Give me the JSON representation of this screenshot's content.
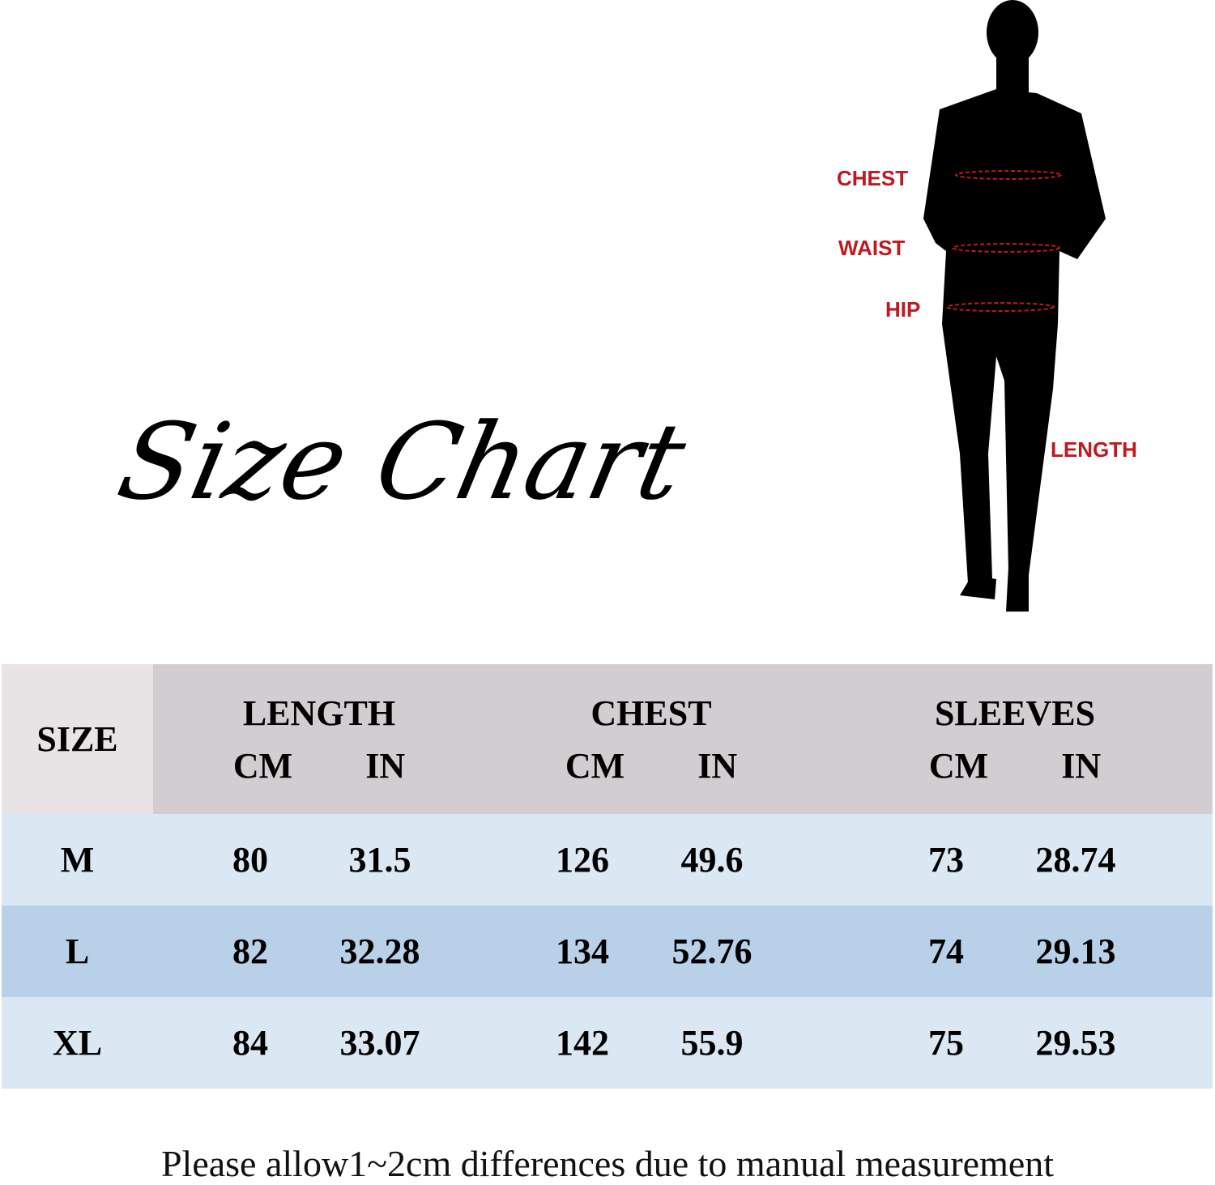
{
  "title": "Size Chart",
  "figure_labels": {
    "chest": "CHEST",
    "waist": "WAIST",
    "hip": "HIP",
    "length": "LENGTH"
  },
  "table": {
    "size_header": "SIZE",
    "groups": [
      {
        "label": "LENGTH",
        "cm": "CM",
        "in": "IN"
      },
      {
        "label": "CHEST",
        "cm": "CM",
        "in": "IN"
      },
      {
        "label": "SLEEVES",
        "cm": "CM",
        "in": "IN"
      }
    ],
    "rows": [
      {
        "size": "M",
        "length_cm": "80",
        "length_in": "31.5",
        "chest_cm": "126",
        "chest_in": "49.6",
        "sleeves_cm": "73",
        "sleeves_in": "28.74"
      },
      {
        "size": "L",
        "length_cm": "82",
        "length_in": "32.28",
        "chest_cm": "134",
        "chest_in": "52.76",
        "sleeves_cm": "74",
        "sleeves_in": "29.13"
      },
      {
        "size": "XL",
        "length_cm": "84",
        "length_in": "33.07",
        "chest_cm": "142",
        "chest_in": "55.9",
        "sleeves_cm": "75",
        "sleeves_in": "29.53"
      }
    ]
  },
  "note": "Please allow1~2cm differences due to manual measurement",
  "colors": {
    "label_red": "#c0181e",
    "header_gray": "#d1cdd0",
    "row_light": "#dbe7f3",
    "row_dark": "#b8d0e8"
  }
}
